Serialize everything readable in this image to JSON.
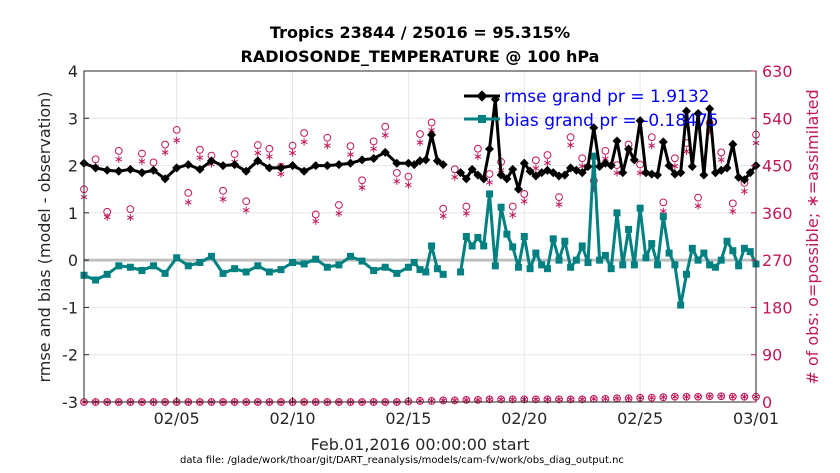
{
  "chart_data": {
    "type": "line",
    "title": "Tropics 23844 / 25016 = 95.315%",
    "subtitle": "RADIOSONDE_TEMPERATURE @ 100 hPa",
    "ylabel": "rmse and bias (model - observation)",
    "y2label": "# of obs: o=possible; ∗=assimilated",
    "xlabel": "Feb.01,2016 00:00:00 start",
    "footnote": "data file: /glade/work/thoar/git/DART_reanalysis/models/cam-fv/work/obs_diag_output.nc",
    "xlim": [
      1,
      30
    ],
    "ylim": [
      -3,
      4
    ],
    "y2lim": [
      0,
      630
    ],
    "x_ticks": [
      5,
      10,
      15,
      20,
      25,
      30
    ],
    "x_tick_labels": [
      "02/05",
      "02/10",
      "02/15",
      "02/20",
      "02/25",
      "03/01"
    ],
    "y_ticks": [
      -3,
      -2,
      -1,
      0,
      1,
      2,
      3,
      4
    ],
    "y_tick_labels": [
      "-3",
      "-2",
      "-1",
      "0",
      "1",
      "2",
      "3",
      "4"
    ],
    "y2_ticks": [
      0,
      90,
      180,
      270,
      360,
      450,
      540,
      630
    ],
    "y2_tick_labels": [
      "0",
      "90",
      "180",
      "270",
      "360",
      "450",
      "540",
      "630"
    ],
    "zero_line": 0,
    "legend": [
      "rmse grand pr = 1.9132",
      "bias grand pr = -0.18475"
    ],
    "colors": {
      "rmse": "#000000",
      "bias": "#008080",
      "obs": "#c2185b",
      "zero": "#bfbfbf"
    },
    "series": [
      {
        "name": "rmse",
        "x": [
          1.0,
          1.5,
          2.0,
          2.5,
          3.0,
          3.5,
          4.0,
          4.5,
          5.0,
          5.5,
          6.0,
          6.5,
          7.0,
          7.5,
          8.0,
          8.5,
          9.0,
          9.5,
          10.0,
          10.5,
          11.0,
          11.5,
          12.0,
          12.5,
          13.0,
          13.5,
          14.0,
          14.5,
          15.0,
          15.25,
          15.5,
          15.75,
          16.0,
          16.25,
          16.5,
          16.75,
          17.0,
          17.25,
          17.5,
          17.75,
          18.0,
          18.25,
          18.5,
          18.75,
          19.0,
          19.25,
          19.5,
          19.75,
          20.0,
          20.25,
          20.5,
          20.75,
          21.0,
          21.25,
          21.5,
          21.75,
          22.0,
          22.25,
          22.5,
          22.75,
          23.0,
          23.25,
          23.5,
          23.75,
          24.0,
          24.25,
          24.5,
          24.75,
          25.0,
          25.25,
          25.5,
          25.75,
          26.0,
          26.25,
          26.5,
          26.75,
          27.0,
          27.25,
          27.5,
          27.75,
          28.0,
          28.25,
          28.5,
          28.75,
          29.0,
          29.25,
          29.5,
          29.75,
          30.0
        ],
        "values": [
          2.05,
          1.95,
          1.9,
          1.88,
          1.92,
          1.85,
          1.9,
          1.72,
          1.95,
          2.02,
          1.92,
          2.1,
          2.0,
          2.02,
          1.88,
          2.1,
          1.95,
          1.95,
          2.0,
          1.88,
          2.0,
          2.0,
          2.02,
          2.05,
          2.12,
          2.15,
          2.28,
          2.05,
          2.05,
          2.02,
          2.1,
          2.12,
          2.65,
          2.1,
          2.02,
          null,
          null,
          1.85,
          1.72,
          1.92,
          1.8,
          1.72,
          2.35,
          3.4,
          1.8,
          1.72,
          1.92,
          1.5,
          2.05,
          1.88,
          1.78,
          1.85,
          1.9,
          1.85,
          1.78,
          1.8,
          1.95,
          1.9,
          1.85,
          1.98,
          2.8,
          1.98,
          2.05,
          2.0,
          2.52,
          1.85,
          2.35,
          2.12,
          2.95,
          1.85,
          1.82,
          1.8,
          2.5,
          2.0,
          1.82,
          1.85,
          3.15,
          1.98,
          3.1,
          1.8,
          3.2,
          1.85,
          1.9,
          1.95,
          2.45,
          1.75,
          1.7,
          1.85,
          2.0
        ]
      },
      {
        "name": "bias",
        "x": [
          1.0,
          1.5,
          2.0,
          2.5,
          3.0,
          3.5,
          4.0,
          4.5,
          5.0,
          5.5,
          6.0,
          6.5,
          7.0,
          7.5,
          8.0,
          8.5,
          9.0,
          9.5,
          10.0,
          10.5,
          11.0,
          11.5,
          12.0,
          12.5,
          13.0,
          13.5,
          14.0,
          14.5,
          15.0,
          15.25,
          15.5,
          15.75,
          16.0,
          16.25,
          16.5,
          16.75,
          17.0,
          17.25,
          17.5,
          17.75,
          18.0,
          18.25,
          18.5,
          18.75,
          19.0,
          19.25,
          19.5,
          19.75,
          20.0,
          20.25,
          20.5,
          20.75,
          21.0,
          21.25,
          21.5,
          21.75,
          22.0,
          22.25,
          22.5,
          22.75,
          23.0,
          23.25,
          23.5,
          23.75,
          24.0,
          24.25,
          24.5,
          24.75,
          25.0,
          25.25,
          25.5,
          25.75,
          26.0,
          26.25,
          26.5,
          26.75,
          27.0,
          27.25,
          27.5,
          27.75,
          28.0,
          28.25,
          28.5,
          28.75,
          29.0,
          29.25,
          29.5,
          29.75,
          30.0
        ],
        "values": [
          -0.32,
          -0.42,
          -0.3,
          -0.12,
          -0.15,
          -0.22,
          -0.12,
          -0.28,
          0.05,
          -0.12,
          -0.05,
          0.08,
          -0.28,
          -0.18,
          -0.25,
          -0.12,
          -0.25,
          -0.2,
          -0.05,
          -0.08,
          0.02,
          -0.15,
          -0.1,
          0.08,
          -0.02,
          -0.22,
          -0.15,
          -0.28,
          -0.15,
          -0.05,
          -0.2,
          -0.25,
          0.3,
          -0.18,
          -0.3,
          null,
          null,
          -0.25,
          0.5,
          0.3,
          0.48,
          0.3,
          1.4,
          -0.12,
          1.12,
          0.55,
          0.28,
          -0.15,
          0.5,
          -0.18,
          0.15,
          -0.1,
          -0.18,
          0.45,
          0.0,
          0.4,
          -0.15,
          0.0,
          0.3,
          -0.05,
          2.2,
          0.0,
          0.1,
          -0.18,
          1.0,
          -0.1,
          0.65,
          -0.1,
          1.1,
          0.05,
          0.35,
          -0.1,
          0.92,
          0.15,
          -0.1,
          -0.95,
          -0.3,
          0.25,
          0.0,
          0.15,
          -0.1,
          -0.15,
          0.0,
          0.4,
          0.2,
          -0.12,
          0.25,
          0.18,
          -0.08
        ]
      },
      {
        "name": "obs_possible",
        "x": [
          1.0,
          1.5,
          2.0,
          2.5,
          3.0,
          3.5,
          4.0,
          4.5,
          5.0,
          5.5,
          6.0,
          6.5,
          7.0,
          7.5,
          8.0,
          8.5,
          9.0,
          9.5,
          10.0,
          10.5,
          11.0,
          11.5,
          12.0,
          12.5,
          13.0,
          13.5,
          14.0,
          14.5,
          15.0,
          15.5,
          16.0,
          16.5,
          17.0,
          17.5,
          18.0,
          18.5,
          19.0,
          19.5,
          20.0,
          20.5,
          21.0,
          21.5,
          22.0,
          22.5,
          23.0,
          23.5,
          24.0,
          24.5,
          25.0,
          25.5,
          26.0,
          26.5,
          27.0,
          27.5,
          28.0,
          28.5,
          29.0,
          29.5,
          30.0
        ],
        "values": [
          405,
          462,
          362,
          478,
          367,
          473,
          456,
          490,
          518,
          398,
          480,
          469,
          402,
          472,
          382,
          489,
          482,
          448,
          488,
          512,
          357,
          503,
          375,
          487,
          422,
          496,
          524,
          436,
          429,
          510,
          532,
          368,
          443,
          372,
          482,
          434,
          457,
          372,
          396,
          460,
          470,
          390,
          504,
          464,
          421,
          478,
          451,
          490,
          452,
          504,
          380,
          464,
          493,
          389,
          531,
          475,
          378,
          417,
          509
        ],
        "low_values": [
          0,
          0,
          0,
          0,
          0,
          0,
          0,
          0,
          0,
          0,
          0,
          0,
          0,
          0,
          0,
          0,
          0,
          0,
          0,
          0,
          0,
          0,
          0,
          0,
          0,
          0,
          0,
          0,
          1,
          2,
          2,
          3,
          3,
          4,
          4,
          5,
          5,
          5,
          5,
          5,
          5,
          5,
          5,
          5,
          6,
          6,
          7,
          7,
          8,
          8,
          9,
          10,
          10,
          10,
          11,
          11,
          10,
          10,
          10
        ]
      },
      {
        "name": "obs_assimilated",
        "x": [
          1.0,
          1.5,
          2.0,
          2.5,
          3.0,
          3.5,
          4.0,
          4.5,
          5.0,
          5.5,
          6.0,
          6.5,
          7.0,
          7.5,
          8.0,
          8.5,
          9.0,
          9.5,
          10.0,
          10.5,
          11.0,
          11.5,
          12.0,
          12.5,
          13.0,
          13.5,
          14.0,
          14.5,
          15.0,
          15.5,
          16.0,
          16.5,
          17.0,
          17.5,
          18.0,
          18.5,
          19.0,
          19.5,
          20.0,
          20.5,
          21.0,
          21.5,
          22.0,
          22.5,
          23.0,
          23.5,
          24.0,
          24.5,
          25.0,
          25.5,
          26.0,
          26.5,
          27.0,
          27.5,
          28.0,
          28.5,
          29.0,
          29.5,
          30.0
        ],
        "values": [
          390,
          448,
          352,
          462,
          351,
          458,
          440,
          475,
          498,
          380,
          465,
          453,
          386,
          457,
          365,
          474,
          467,
          434,
          474,
          495,
          344,
          488,
          359,
          471,
          408,
          482,
          508,
          420,
          413,
          494,
          517,
          354,
          428,
          359,
          467,
          418,
          441,
          356,
          382,
          445,
          455,
          376,
          489,
          449,
          406,
          463,
          436,
          475,
          436,
          488,
          363,
          449,
          477,
          373,
          516,
          461,
          363,
          401,
          493
        ],
        "low_values": [
          0,
          0,
          0,
          0,
          0,
          0,
          0,
          0,
          0,
          0,
          0,
          0,
          0,
          0,
          0,
          0,
          0,
          0,
          0,
          0,
          0,
          0,
          0,
          0,
          0,
          0,
          0,
          0,
          1,
          2,
          2,
          3,
          3,
          4,
          4,
          5,
          5,
          5,
          5,
          5,
          5,
          5,
          5,
          5,
          6,
          6,
          7,
          7,
          8,
          8,
          9,
          10,
          10,
          10,
          11,
          11,
          10,
          10,
          10
        ]
      }
    ]
  }
}
